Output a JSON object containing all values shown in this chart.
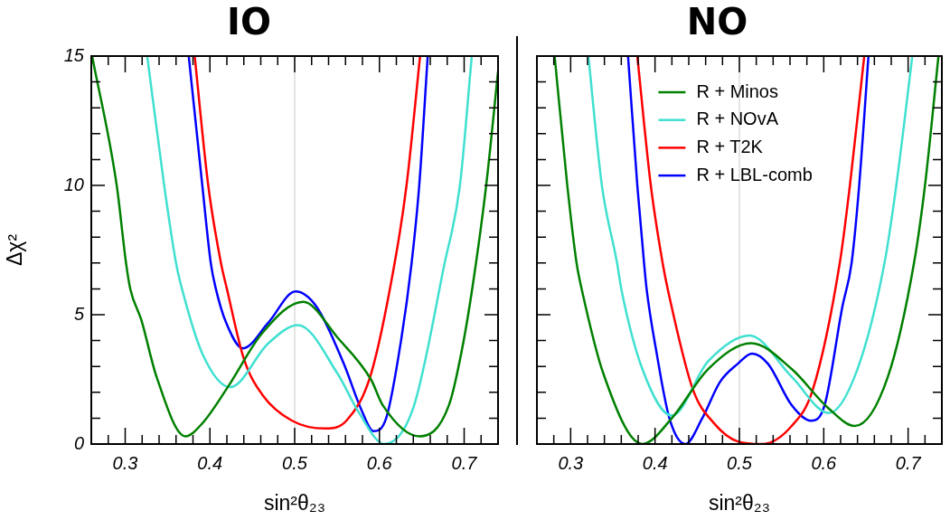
{
  "chart_data": [
    {
      "type": "line",
      "title": "IO",
      "xlabel": "sin²θ₂₃",
      "ylabel": "Δχ²",
      "xlim": [
        0.26,
        0.74
      ],
      "ylim": [
        0,
        15
      ],
      "xticks": [
        {
          "value": 0.28,
          "label": null
        },
        0.3,
        {
          "value": 0.32,
          "label": null
        },
        {
          "value": 0.34,
          "label": null
        },
        {
          "value": 0.36,
          "label": null
        },
        {
          "value": 0.38,
          "label": null
        },
        0.4,
        {
          "value": 0.42,
          "label": null
        },
        {
          "value": 0.44,
          "label": null
        },
        {
          "value": 0.46,
          "label": null
        },
        {
          "value": 0.48,
          "label": null
        },
        0.5,
        {
          "value": 0.52,
          "label": null
        },
        {
          "value": 0.54,
          "label": null
        },
        {
          "value": 0.56,
          "label": null
        },
        {
          "value": 0.58,
          "label": null
        },
        0.6,
        {
          "value": 0.62,
          "label": null
        },
        {
          "value": 0.64,
          "label": null
        },
        {
          "value": 0.66,
          "label": null
        },
        {
          "value": 0.68,
          "label": null
        },
        0.7,
        {
          "value": 0.72,
          "label": null
        }
      ],
      "yticks": [
        0,
        {
          "value": 1,
          "label": null
        },
        {
          "value": 2,
          "label": null
        },
        {
          "value": 3,
          "label": null
        },
        {
          "value": 4,
          "label": null
        },
        5,
        {
          "value": 6,
          "label": null
        },
        {
          "value": 7,
          "label": null
        },
        {
          "value": 8,
          "label": null
        },
        {
          "value": 9,
          "label": null
        },
        10,
        {
          "value": 11,
          "label": null
        },
        {
          "value": 12,
          "label": null
        },
        {
          "value": 13,
          "label": null
        },
        {
          "value": 14,
          "label": null
        },
        15
      ],
      "ref_lines": [
        {
          "axis": "x",
          "value": 0.5,
          "color": "#d3d3d3"
        }
      ],
      "legend": false,
      "series": [
        {
          "color": "#008000",
          "x": [
            0.261,
            0.29,
            0.301,
            0.306,
            0.319,
            0.337,
            0.371,
            0.391,
            0.421,
            0.462,
            0.51,
            0.551,
            0.59,
            0.604,
            0.647,
            0.682,
            0.7,
            0.714,
            0.726,
            0.74
          ],
          "values": [
            15,
            10,
            7,
            6,
            4.8,
            2.6,
            0.3,
            0.8,
            2.2,
            4.3,
            5.5,
            4.1,
            2.5,
            1.5,
            0.3,
            1.5,
            4.1,
            7,
            10,
            14.4
          ]
        },
        {
          "color": "#40e0d0",
          "x": [
            0.326,
            0.346,
            0.36,
            0.367,
            0.391,
            0.424,
            0.469,
            0.504,
            0.551,
            0.576,
            0.606,
            0.64,
            0.677,
            0.695,
            0.709
          ],
          "values": [
            15,
            10,
            7,
            6,
            3.5,
            2.2,
            3.9,
            4.6,
            2.7,
            1.2,
            0,
            1.4,
            7,
            10,
            15
          ]
        },
        {
          "color": "#ff0000",
          "x": [
            0.382,
            0.398,
            0.413,
            0.42,
            0.44,
            0.462,
            0.497,
            0.536,
            0.561,
            0.59,
            0.618,
            0.632,
            0.648
          ],
          "values": [
            15,
            10,
            7,
            6,
            3.3,
            1.9,
            0.9,
            0.6,
            0.9,
            2.7,
            7,
            10,
            15
          ]
        },
        {
          "color": "#0000ff",
          "x": [
            0.375,
            0.391,
            0.401,
            0.407,
            0.419,
            0.439,
            0.469,
            0.501,
            0.526,
            0.558,
            0.579,
            0.593,
            0.608,
            0.626,
            0.638,
            0.647,
            0.657
          ],
          "values": [
            15,
            10,
            7,
            6,
            4.7,
            3.7,
            4.7,
            5.9,
            5.3,
            3.1,
            1.3,
            0.5,
            1,
            4.1,
            7,
            10,
            15
          ]
        }
      ]
    },
    {
      "type": "line",
      "title": "NO",
      "xlabel": "sin²θ₂₃",
      "xlim": [
        0.26,
        0.74
      ],
      "ylim": [
        0,
        15
      ],
      "tick_labels": "x",
      "xticks": [
        {
          "value": 0.28,
          "label": null
        },
        0.3,
        {
          "value": 0.32,
          "label": null
        },
        {
          "value": 0.34,
          "label": null
        },
        {
          "value": 0.36,
          "label": null
        },
        {
          "value": 0.38,
          "label": null
        },
        0.4,
        {
          "value": 0.42,
          "label": null
        },
        {
          "value": 0.44,
          "label": null
        },
        {
          "value": 0.46,
          "label": null
        },
        {
          "value": 0.48,
          "label": null
        },
        0.5,
        {
          "value": 0.52,
          "label": null
        },
        {
          "value": 0.54,
          "label": null
        },
        {
          "value": 0.56,
          "label": null
        },
        {
          "value": 0.58,
          "label": null
        },
        0.6,
        {
          "value": 0.62,
          "label": null
        },
        {
          "value": 0.64,
          "label": null
        },
        {
          "value": 0.66,
          "label": null
        },
        {
          "value": 0.68,
          "label": null
        },
        0.7,
        {
          "value": 0.72,
          "label": null
        }
      ],
      "yticks": [
        0,
        {
          "value": 1,
          "label": null
        },
        {
          "value": 2,
          "label": null
        },
        {
          "value": 3,
          "label": null
        },
        {
          "value": 4,
          "label": null
        },
        5,
        {
          "value": 6,
          "label": null
        },
        {
          "value": 7,
          "label": null
        },
        {
          "value": 8,
          "label": null
        },
        {
          "value": 9,
          "label": null
        },
        10,
        {
          "value": 11,
          "label": null
        },
        {
          "value": 12,
          "label": null
        },
        {
          "value": 13,
          "label": null
        },
        {
          "value": 14,
          "label": null
        },
        15
      ],
      "ref_lines": [
        {
          "axis": "x",
          "value": 0.5,
          "color": "#d3d3d3"
        }
      ],
      "legend": "top",
      "series": [
        {
          "name": "R + Minos",
          "color": "#008000",
          "x": [
            0.281,
            0.296,
            0.307,
            0.313,
            0.339,
            0.385,
            0.42,
            0.463,
            0.514,
            0.562,
            0.605,
            0.637,
            0.676,
            0.707,
            0.72,
            0.736
          ],
          "values": [
            15,
            10,
            7,
            6,
            2.7,
            0,
            1,
            2.9,
            3.9,
            2.9,
            1.4,
            0.7,
            2.6,
            7,
            10,
            15
          ]
        },
        {
          "name": "R + NOvA",
          "color": "#40e0d0",
          "x": [
            0.321,
            0.337,
            0.355,
            0.36,
            0.385,
            0.42,
            0.463,
            0.512,
            0.562,
            0.606,
            0.64,
            0.672,
            0.686,
            0.705
          ],
          "values": [
            15,
            10,
            7,
            6,
            2.9,
            1.1,
            3.2,
            4.2,
            2.6,
            1.2,
            2.9,
            7,
            10,
            15
          ]
        },
        {
          "name": "R + T2K",
          "color": "#ff0000",
          "x": [
            0.379,
            0.395,
            0.409,
            0.415,
            0.445,
            0.47,
            0.498,
            0.527,
            0.562,
            0.587,
            0.619,
            0.631,
            0.648
          ],
          "values": [
            15,
            10,
            7,
            6,
            2.1,
            0.8,
            0.1,
            0,
            0.7,
            2.1,
            7,
            10,
            15
          ]
        },
        {
          "name": "R + LBL-comb",
          "color": "#0000ff",
          "x": [
            0.368,
            0.379,
            0.387,
            0.39,
            0.402,
            0.417,
            0.436,
            0.456,
            0.477,
            0.498,
            0.515,
            0.534,
            0.562,
            0.585,
            0.601,
            0.622,
            0.633,
            0.642,
            0.653
          ],
          "values": [
            15,
            10,
            7,
            6,
            3.5,
            1,
            0,
            1,
            2.4,
            3.1,
            3.5,
            3.1,
            1.5,
            0.9,
            1.5,
            5.3,
            7,
            10,
            15
          ]
        }
      ]
    }
  ]
}
